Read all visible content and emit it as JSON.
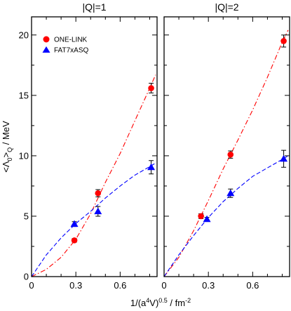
{
  "chart_data": [
    {
      "type": "scatter",
      "title": "|Q|=1",
      "xlabel": "1/(a⁴V)⁰·⁵ / fm⁻²",
      "ylabel": "<Λ₀>_Q / MeV",
      "xlim": [
        0,
        0.85
      ],
      "ylim": [
        0,
        21.5
      ],
      "xticks": [
        0,
        0.3,
        0.6
      ],
      "xtick_labels": [
        "0",
        "0.3",
        "0.6"
      ],
      "yticks": [
        0,
        5,
        10,
        15,
        20
      ],
      "ytick_labels": [
        "0",
        "5",
        "10",
        "15",
        "20"
      ],
      "grid": false,
      "legend_position": "top-left",
      "series": [
        {
          "name": "ONE-LINK",
          "color": "#ff0000",
          "marker": "circle",
          "x": [
            0.29,
            0.45,
            0.81
          ],
          "y": [
            3.0,
            6.9,
            15.6
          ],
          "err": [
            0.15,
            0.3,
            0.4
          ],
          "fit_color": "#ff0000",
          "fit_style": "dash-dot",
          "fit": [
            [
              0,
              0
            ],
            [
              0.1,
              0.6
            ],
            [
              0.2,
              1.6
            ],
            [
              0.3,
              3.1
            ],
            [
              0.4,
              5.2
            ],
            [
              0.5,
              7.8
            ],
            [
              0.6,
              10.2
            ],
            [
              0.7,
              12.9
            ],
            [
              0.8,
              15.6
            ],
            [
              0.84,
              16.7
            ]
          ]
        },
        {
          "name": "FAT7xASQ",
          "color": "#0000ff",
          "marker": "triangle",
          "x": [
            0.29,
            0.45,
            0.81
          ],
          "y": [
            4.35,
            5.4,
            9.05
          ],
          "err": [
            0.2,
            0.4,
            0.55
          ],
          "fit_color": "#0000ff",
          "fit_style": "dashed",
          "fit": [
            [
              0,
              0
            ],
            [
              0.1,
              1.8
            ],
            [
              0.2,
              3.2
            ],
            [
              0.3,
              4.4
            ],
            [
              0.4,
              5.4
            ],
            [
              0.5,
              6.5
            ],
            [
              0.6,
              7.5
            ],
            [
              0.7,
              8.4
            ],
            [
              0.8,
              9.1
            ],
            [
              0.84,
              9.4
            ]
          ]
        }
      ]
    },
    {
      "type": "scatter",
      "title": "|Q|=2",
      "xlabel": "1/(a⁴V)⁰·⁵ / fm⁻²",
      "ylabel": "",
      "xlim": [
        0,
        0.85
      ],
      "ylim": [
        0,
        21.5
      ],
      "xticks": [
        0,
        0.3,
        0.6
      ],
      "xtick_labels": [
        "0",
        "0.3",
        "0.6"
      ],
      "yticks": [
        0,
        5,
        10,
        15,
        20
      ],
      "ytick_labels": [
        "",
        "",
        "",
        "",
        ""
      ],
      "grid": false,
      "series": [
        {
          "name": "ONE-LINK",
          "color": "#ff0000",
          "marker": "circle",
          "x": [
            0.25,
            0.45,
            0.81
          ],
          "y": [
            5.0,
            10.1,
            19.5
          ],
          "err": [
            0.2,
            0.3,
            0.5
          ],
          "fit_color": "#ff0000",
          "fit_style": "dash-dot",
          "fit": [
            [
              0,
              0
            ],
            [
              0.1,
              1.6
            ],
            [
              0.2,
              3.8
            ],
            [
              0.3,
              6.3
            ],
            [
              0.4,
              8.9
            ],
            [
              0.5,
              11.3
            ],
            [
              0.6,
              13.8
            ],
            [
              0.7,
              16.5
            ],
            [
              0.8,
              19.4
            ],
            [
              0.84,
              20.4
            ]
          ]
        },
        {
          "name": "FAT7xASQ",
          "color": "#0000ff",
          "marker": "triangle",
          "x": [
            0.29,
            0.45,
            0.81
          ],
          "y": [
            4.75,
            6.9,
            9.75
          ],
          "err": [
            0.15,
            0.35,
            0.7
          ],
          "fit_color": "#0000ff",
          "fit_style": "dashed",
          "fit": [
            [
              0,
              0
            ],
            [
              0.1,
              1.8
            ],
            [
              0.2,
              3.4
            ],
            [
              0.3,
              4.9
            ],
            [
              0.4,
              6.2
            ],
            [
              0.5,
              7.3
            ],
            [
              0.6,
              8.3
            ],
            [
              0.7,
              9.0
            ],
            [
              0.8,
              9.7
            ],
            [
              0.84,
              10.0
            ]
          ]
        }
      ]
    }
  ]
}
